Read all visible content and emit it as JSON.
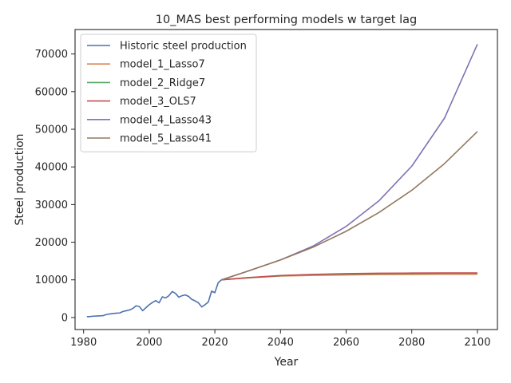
{
  "chart_data": {
    "type": "line",
    "title": "10_MAS best performing models w target lag",
    "xlabel": "Year",
    "ylabel": "Steel production",
    "xlim": [
      1977.4,
      2106.1
    ],
    "ylim": [
      -3200,
      76500
    ],
    "xticks": [
      1980,
      2000,
      2020,
      2040,
      2060,
      2080,
      2100
    ],
    "yticks": [
      0,
      10000,
      20000,
      30000,
      40000,
      50000,
      60000,
      70000
    ],
    "xtick_labels": [
      "1980",
      "2000",
      "2020",
      "2040",
      "2060",
      "2080",
      "2100"
    ],
    "ytick_labels": [
      "0",
      "10000",
      "20000",
      "30000",
      "40000",
      "50000",
      "60000",
      "70000"
    ],
    "grid": false,
    "legend_position": "top-left",
    "series": [
      {
        "name": "Historic steel production",
        "color": "#4c72b0",
        "x": [
          1981,
          1982,
          1983,
          1984,
          1985,
          1986,
          1987,
          1988,
          1989,
          1990,
          1991,
          1992,
          1993,
          1994,
          1995,
          1996,
          1997,
          1998,
          1999,
          2000,
          2001,
          2002,
          2003,
          2004,
          2005,
          2006,
          2007,
          2008,
          2009,
          2010,
          2011,
          2012,
          2013,
          2014,
          2015,
          2016,
          2017,
          2018,
          2019,
          2020,
          2021,
          2022
        ],
        "values": [
          200,
          250,
          350,
          400,
          450,
          500,
          800,
          950,
          1050,
          1150,
          1200,
          1600,
          1800,
          2000,
          2400,
          3100,
          2900,
          1800,
          2600,
          3400,
          4000,
          4500,
          3900,
          5500,
          5200,
          5800,
          6900,
          6400,
          5400,
          5800,
          6000,
          5600,
          4800,
          4400,
          3900,
          2800,
          3400,
          4100,
          7000,
          6600,
          9200,
          10000
        ]
      },
      {
        "name": "model_1_Lasso7",
        "color": "#dd8452",
        "x": [
          2022,
          2030,
          2040,
          2050,
          2060,
          2070,
          2080,
          2090,
          2100
        ],
        "values": [
          10000,
          10500,
          11000,
          11200,
          11300,
          11400,
          11450,
          11500,
          11500
        ]
      },
      {
        "name": "model_2_Ridge7",
        "color": "#55a868",
        "x": [
          2022,
          2030,
          2040,
          2050,
          2060,
          2070,
          2080,
          2090,
          2100
        ],
        "values": [
          10000,
          10550,
          11100,
          11400,
          11550,
          11650,
          11700,
          11750,
          11750
        ]
      },
      {
        "name": "model_3_OLS7",
        "color": "#c44e52",
        "x": [
          2022,
          2030,
          2040,
          2050,
          2060,
          2070,
          2080,
          2090,
          2100
        ],
        "values": [
          10000,
          10600,
          11150,
          11450,
          11650,
          11750,
          11800,
          11850,
          11850
        ]
      },
      {
        "name": "model_4_Lasso43",
        "color": "#8172b3",
        "x": [
          2022,
          2030,
          2040,
          2050,
          2060,
          2070,
          2080,
          2090,
          2100
        ],
        "values": [
          10000,
          12300,
          15300,
          19000,
          24200,
          31000,
          40200,
          53000,
          72600
        ]
      },
      {
        "name": "model_5_Lasso41",
        "color": "#937860",
        "x": [
          2022,
          2030,
          2040,
          2050,
          2060,
          2070,
          2080,
          2090,
          2100
        ],
        "values": [
          10000,
          12300,
          15300,
          18700,
          22900,
          27900,
          33800,
          40900,
          49400
        ]
      }
    ]
  }
}
